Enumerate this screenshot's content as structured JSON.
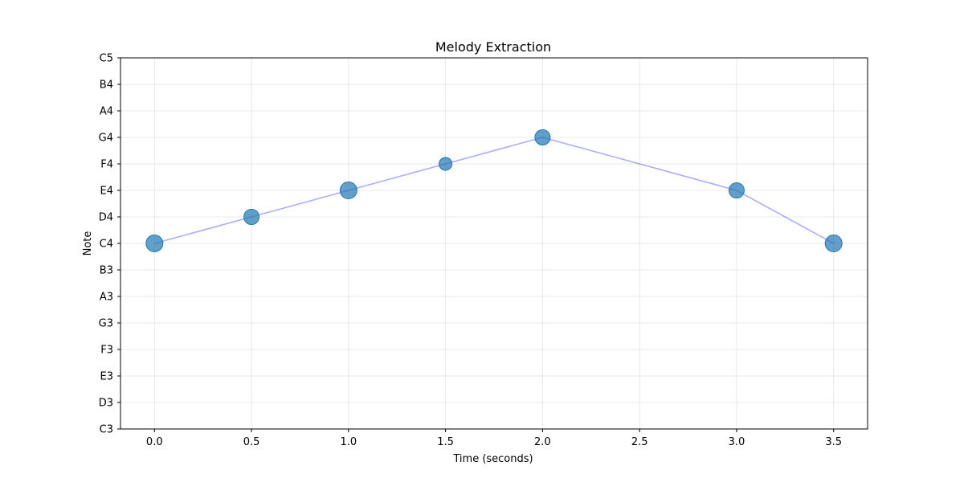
{
  "chart_data": {
    "type": "scatter",
    "title": "Melody Extraction",
    "xlabel": "Time (seconds)",
    "ylabel": "Note",
    "xlim": [
      -0.175,
      3.675
    ],
    "ylim": [
      0,
      14
    ],
    "x_ticks": [
      0.0,
      0.5,
      1.0,
      1.5,
      2.0,
      2.5,
      3.0,
      3.5
    ],
    "x_tick_labels": [
      "0.0",
      "0.5",
      "1.0",
      "1.5",
      "2.0",
      "2.5",
      "3.0",
      "3.5"
    ],
    "y_tick_labels": [
      "C3",
      "D3",
      "E3",
      "F3",
      "G3",
      "A3",
      "B3",
      "C4",
      "D4",
      "E4",
      "F4",
      "G4",
      "A4",
      "B4",
      "C5"
    ],
    "grid": true,
    "series": [
      {
        "marker_color": "#1f77b4",
        "line_color": "#0000ff",
        "points": [
          {
            "x": 0.0,
            "y": "C4",
            "size": "large"
          },
          {
            "x": 0.5,
            "y": "D4",
            "size": "medium"
          },
          {
            "x": 1.0,
            "y": "E4",
            "size": "large"
          },
          {
            "x": 1.5,
            "y": "F4",
            "size": "small"
          },
          {
            "x": 2.0,
            "y": "G4",
            "size": "medium"
          },
          {
            "x": 3.0,
            "y": "E4",
            "size": "medium"
          },
          {
            "x": 3.5,
            "y": "C4",
            "size": "large"
          }
        ]
      }
    ]
  }
}
